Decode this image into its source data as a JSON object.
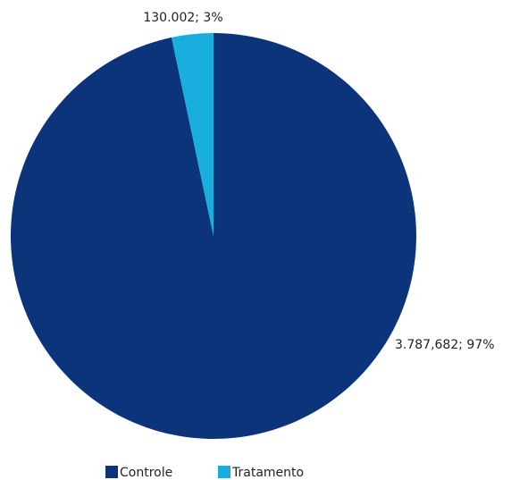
{
  "chart_data": {
    "type": "pie",
    "categories": [
      "Controle",
      "Tratamento"
    ],
    "values": [
      3787682,
      130002
    ],
    "value_labels": [
      "3.787,682; 97%",
      "130.002; 3%"
    ],
    "colors": [
      "#0b347a",
      "#18afdf"
    ],
    "legend": "bottom"
  }
}
